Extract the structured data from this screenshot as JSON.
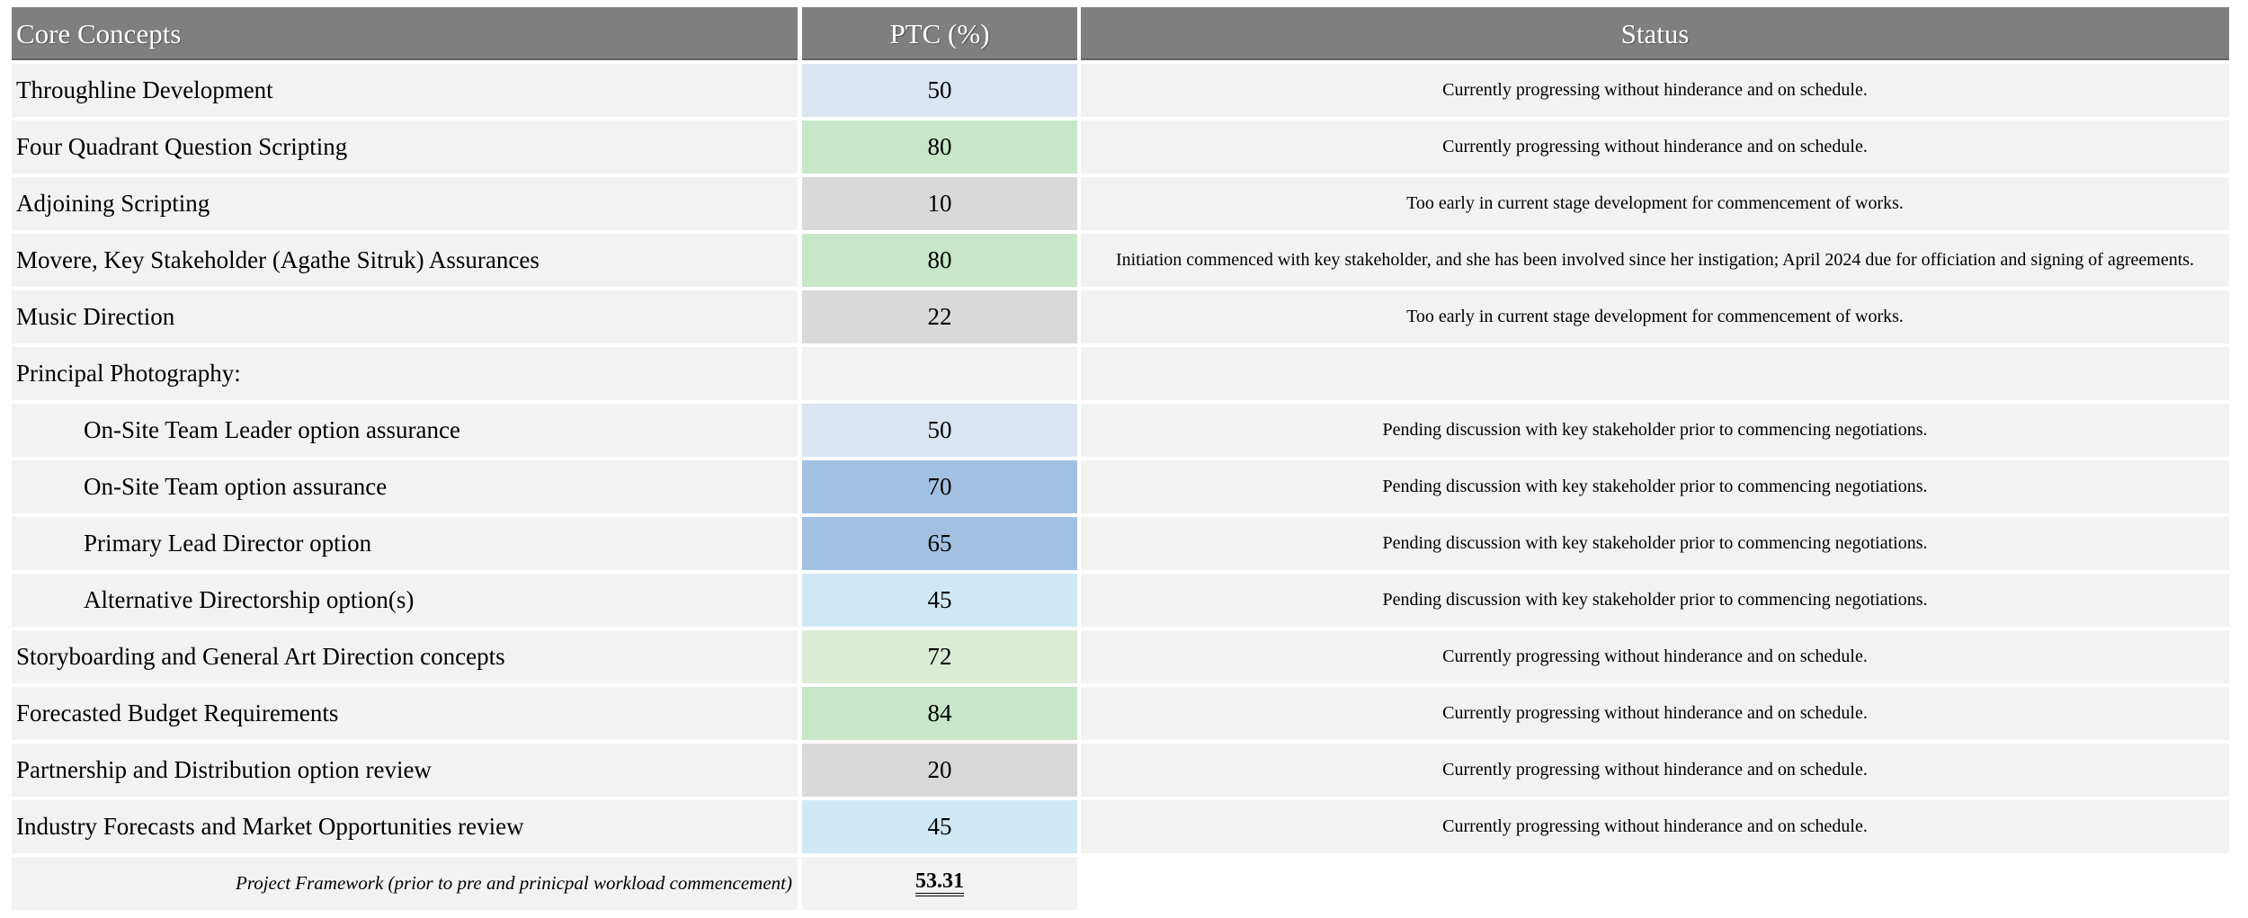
{
  "table": {
    "headers": {
      "core_concepts": "Core Concepts",
      "ptc": "PTC (%)",
      "status": "Status"
    },
    "header_bg": "#7f7f7f",
    "row_bg": "#f2f2f2",
    "ptc_fill_colors": {
      "light_blue": "#dbe5f1",
      "medium_blue": "#a2c1e2",
      "light_cyan": "#d0e8f6",
      "green": "#c7e7c8",
      "pale_green": "#daecd4",
      "gray": "#d9d9d9",
      "none": "#f2f2f2"
    },
    "rows": [
      {
        "label": "Throughline Development",
        "ptc": "50",
        "ptc_color": "#dbe5f1",
        "status": "Currently progressing without hinderance and on schedule."
      },
      {
        "label": "Four Quadrant Question Scripting",
        "ptc": "80",
        "ptc_color": "#c7e7c8",
        "status": "Currently progressing without hinderance and on schedule."
      },
      {
        "label": "Adjoining Scripting",
        "ptc": "10",
        "ptc_color": "#d9d9d9",
        "status": "Too early in current stage development for commencement of works."
      },
      {
        "label": "Movere, Key Stakeholder (Agathe Sitruk) Assurances",
        "ptc": "80",
        "ptc_color": "#c7e7c8",
        "status": "Initiation commenced with key stakeholder, and she has been involved since her instigation; April 2024 due for officiation and signing of agreements."
      },
      {
        "label": "Music Direction",
        "ptc": "22",
        "ptc_color": "#d9d9d9",
        "status": "Too early in current stage development for commencement of works."
      },
      {
        "label": "Principal Photography:",
        "ptc": "",
        "ptc_color": "#f2f2f2",
        "status": ""
      },
      {
        "label": "On-Site Team Leader option assurance",
        "ptc": "50",
        "ptc_color": "#dbe5f1",
        "status": "Pending discussion with key stakeholder prior to commencing negotiations."
      },
      {
        "label": "On-Site Team option assurance",
        "ptc": "70",
        "ptc_color": "#a2c1e2",
        "status": "Pending discussion with key stakeholder prior to commencing negotiations."
      },
      {
        "label": "Primary Lead Director option",
        "ptc": "65",
        "ptc_color": "#a2c1e2",
        "status": "Pending discussion with key stakeholder prior to commencing negotiations."
      },
      {
        "label": "Alternative Directorship option(s)",
        "ptc": "45",
        "ptc_color": "#d0e8f6",
        "status": "Pending discussion with key stakeholder prior to commencing negotiations."
      },
      {
        "label": "Storyboarding and General Art Direction concepts",
        "ptc": "72",
        "ptc_color": "#daecd4",
        "status": "Currently progressing without hinderance and on schedule."
      },
      {
        "label": "Forecasted Budget Requirements",
        "ptc": "84",
        "ptc_color": "#c7e7c8",
        "status": "Currently progressing without hinderance and on schedule."
      },
      {
        "label": "Partnership and Distribution option review",
        "ptc": "20",
        "ptc_color": "#d9d9d9",
        "status": "Currently progressing without hinderance and on schedule."
      },
      {
        "label": "Industry Forecasts and Market Opportunities review",
        "ptc": "45",
        "ptc_color": "#d0e8f6",
        "status": "Currently progressing without hinderance and on schedule."
      }
    ],
    "footer": {
      "label": "Project Framework (prior to pre and prinicpal workload commencement)",
      "value": "53.31"
    }
  }
}
